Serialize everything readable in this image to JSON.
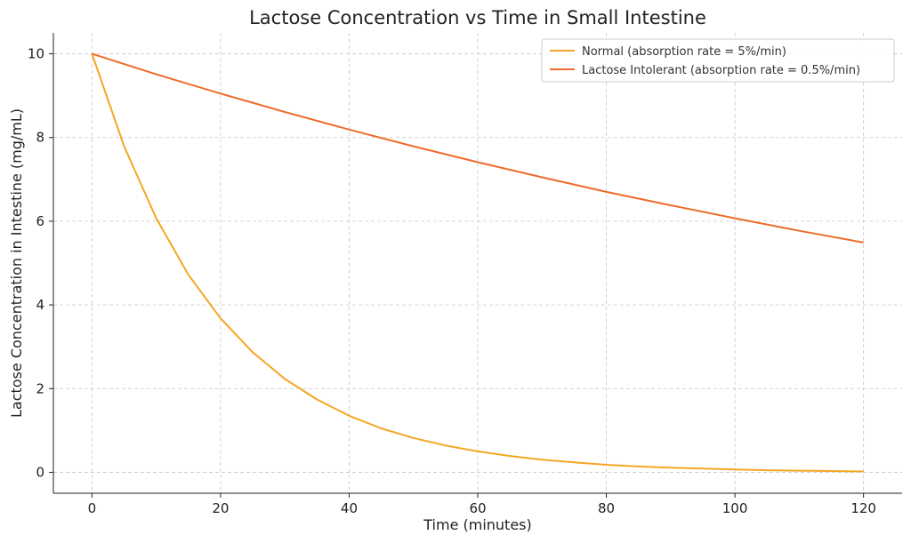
{
  "chart_data": {
    "type": "line",
    "title": "Lactose Concentration vs Time in Small Intestine",
    "xlabel": "Time (minutes)",
    "ylabel": "Lactose Concentration in Intestine (mg/mL)",
    "xlim": [
      -6,
      126
    ],
    "ylim": [
      -0.5,
      10.5
    ],
    "xticks": [
      0,
      20,
      40,
      60,
      80,
      100,
      120
    ],
    "yticks": [
      0,
      2,
      4,
      6,
      8,
      10
    ],
    "grid": true,
    "legend_position": "top-right",
    "series": [
      {
        "name": "Normal (absorption rate = 5%/min)",
        "color": "#f5a623",
        "x": [
          0,
          5,
          10,
          15,
          20,
          25,
          30,
          35,
          40,
          45,
          50,
          55,
          60,
          65,
          70,
          75,
          80,
          85,
          90,
          95,
          100,
          105,
          110,
          115,
          120
        ],
        "y": [
          10,
          7.79,
          6.07,
          4.72,
          3.68,
          2.87,
          2.23,
          1.74,
          1.35,
          1.05,
          0.82,
          0.64,
          0.5,
          0.39,
          0.3,
          0.24,
          0.18,
          0.14,
          0.11,
          0.09,
          0.07,
          0.05,
          0.04,
          0.03,
          0.02
        ]
      },
      {
        "name": "Lactose Intolerant (absorption rate = 0.5%/min)",
        "color": "#ee6c2c",
        "x": [
          0,
          10,
          20,
          30,
          40,
          50,
          60,
          70,
          80,
          90,
          100,
          110,
          120
        ],
        "y": [
          10,
          9.51,
          9.05,
          8.61,
          8.19,
          7.79,
          7.41,
          7.05,
          6.7,
          6.38,
          6.07,
          5.77,
          5.49
        ]
      }
    ]
  }
}
